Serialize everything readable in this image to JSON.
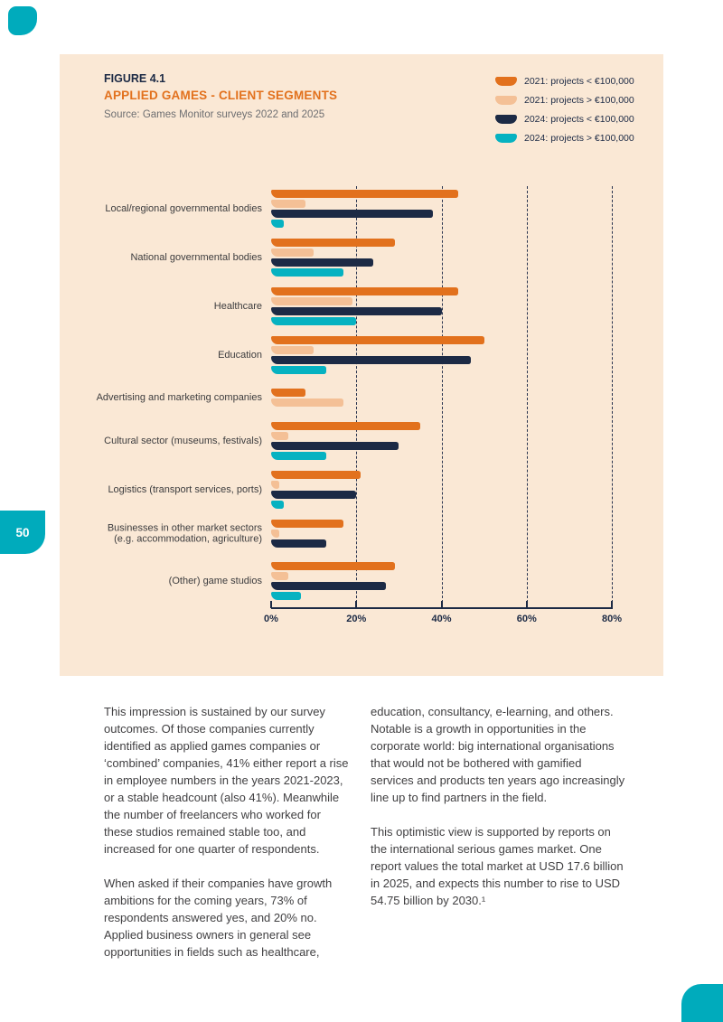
{
  "page": {
    "number": "50"
  },
  "figure": {
    "label": "FIGURE 4.1",
    "title": "APPLIED GAMES - CLIENT SEGMENTS",
    "source": "Source: Games Monitor surveys 2022 and 2025"
  },
  "chart_data": {
    "type": "bar",
    "orientation": "horizontal",
    "title": "APPLIED GAMES - CLIENT SEGMENTS",
    "legend_position": "top-right",
    "grid": "dashed vertical gridlines at 20%, 40%, 60%, 80%",
    "x_axis": {
      "ticks": [
        "0%",
        "20%",
        "40%",
        "60%",
        "80%"
      ],
      "range": [
        0,
        80
      ],
      "unit": "%"
    },
    "categories": [
      "Local/regional governmental bodies",
      "National governmental bodies",
      "Healthcare",
      "Education",
      "Advertising and marketing companies",
      "Cultural sector (museums, festivals)",
      "Logistics (transport services, ports)",
      "Businesses in other market sectors\n(e.g. accommodation, agriculture)",
      "(Other) game studios"
    ],
    "series": [
      {
        "name": "2021: projects < €100,000",
        "color": "#e2711d",
        "values": [
          44,
          29,
          44,
          50,
          8,
          35,
          21,
          17,
          29
        ]
      },
      {
        "name": "2021: projects > €100,000",
        "color": "#f4c096",
        "values": [
          8,
          10,
          19,
          10,
          17,
          4,
          2,
          2,
          4
        ]
      },
      {
        "name": "2024: projects < €100,000",
        "color": "#1c2a45",
        "values": [
          38,
          24,
          40,
          47,
          null,
          30,
          20,
          13,
          27
        ]
      },
      {
        "name": "2024: projects > €100,000",
        "color": "#06b2c1",
        "values": [
          3,
          17,
          20,
          13,
          null,
          13,
          3,
          null,
          7
        ]
      }
    ]
  },
  "body": {
    "col1": [
      "This impression is sustained by our survey outcomes. Of those companies currently identified as applied games companies or ‘combined’ companies, 41% either report a rise in employee numbers in the years 2021-2023, or a stable headcount (also 41%). Meanwhile the number of freelancers who worked for these studios remained stable too, and increased for one quarter of respondents.",
      "When asked if their companies have growth ambitions for the coming years, 73% of respondents answered yes, and 20% no. Applied business owners in general see opportunities in fields such as healthcare,"
    ],
    "col2": [
      "education, consultancy, e-learning, and others. Notable is a growth in opportunities in the corporate world: big international organisations that would not be bothered with gamified services and products ten years ago increasingly line up to find partners in the field.",
      "This optimistic view is supported by reports on the international serious games market. One report values the total market at USD 17.6 billion in 2025, and expects this number to rise to USD 54.75 billion by 2030.¹"
    ]
  },
  "colors": {
    "accent_teal": "#00abbc",
    "panel_background": "#fae8d5",
    "navy": "#1c2a45",
    "orange": "#e2711d",
    "peach": "#f4c096",
    "body_text": "#414042"
  }
}
